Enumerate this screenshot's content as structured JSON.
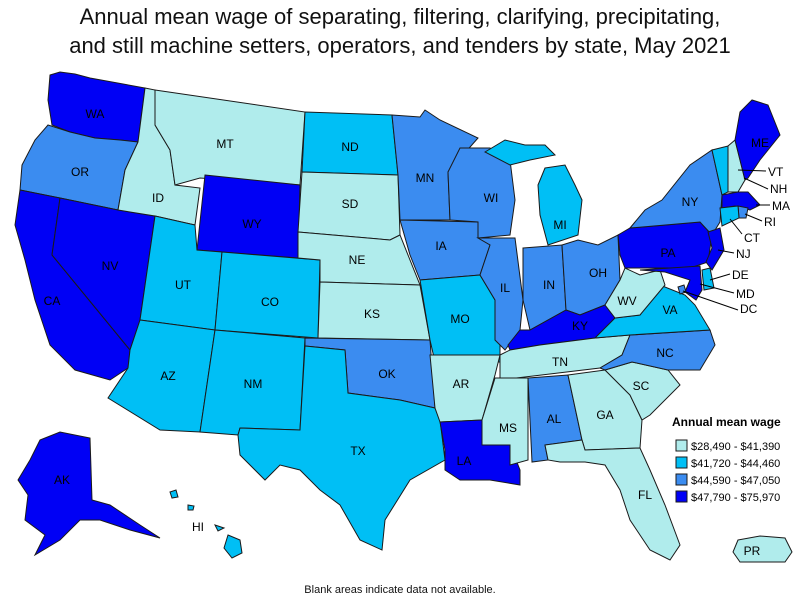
{
  "title_line1": "Annual mean wage of separating, filtering, clarifying, precipitating,",
  "title_line2": "and still machine setters, operators, and tenders by state, May 2021",
  "footnote": "Blank areas indicate data not available.",
  "legend": {
    "title": "Annual mean wage",
    "bins": [
      {
        "label": "$28,490 - $41,390",
        "color": "#b0ecec"
      },
      {
        "label": "$41,720 - $44,460",
        "color": "#00bff5"
      },
      {
        "label": "$44,590 - $47,050",
        "color": "#3b8cf0"
      },
      {
        "label": "$47,790 - $75,970",
        "color": "#0000f5"
      }
    ]
  },
  "states": [
    {
      "abbr": "WA",
      "bin": 3
    },
    {
      "abbr": "OR",
      "bin": 2
    },
    {
      "abbr": "CA",
      "bin": 3
    },
    {
      "abbr": "NV",
      "bin": 3
    },
    {
      "abbr": "ID",
      "bin": 0
    },
    {
      "abbr": "MT",
      "bin": 0
    },
    {
      "abbr": "WY",
      "bin": 3
    },
    {
      "abbr": "UT",
      "bin": 1
    },
    {
      "abbr": "CO",
      "bin": 1
    },
    {
      "abbr": "AZ",
      "bin": 1
    },
    {
      "abbr": "NM",
      "bin": 1
    },
    {
      "abbr": "ND",
      "bin": 1
    },
    {
      "abbr": "SD",
      "bin": 0
    },
    {
      "abbr": "NE",
      "bin": 0
    },
    {
      "abbr": "KS",
      "bin": 0
    },
    {
      "abbr": "OK",
      "bin": 2
    },
    {
      "abbr": "TX",
      "bin": 1
    },
    {
      "abbr": "MN",
      "bin": 2
    },
    {
      "abbr": "IA",
      "bin": 2
    },
    {
      "abbr": "MO",
      "bin": 1
    },
    {
      "abbr": "AR",
      "bin": 0
    },
    {
      "abbr": "LA",
      "bin": 3
    },
    {
      "abbr": "WI",
      "bin": 2
    },
    {
      "abbr": "IL",
      "bin": 2
    },
    {
      "abbr": "MI",
      "bin": 1
    },
    {
      "abbr": "IN",
      "bin": 2
    },
    {
      "abbr": "OH",
      "bin": 2
    },
    {
      "abbr": "KY",
      "bin": 3
    },
    {
      "abbr": "TN",
      "bin": 0
    },
    {
      "abbr": "MS",
      "bin": 0
    },
    {
      "abbr": "AL",
      "bin": 2
    },
    {
      "abbr": "GA",
      "bin": 0
    },
    {
      "abbr": "FL",
      "bin": 0
    },
    {
      "abbr": "SC",
      "bin": 0
    },
    {
      "abbr": "NC",
      "bin": 2
    },
    {
      "abbr": "VA",
      "bin": 1
    },
    {
      "abbr": "WV",
      "bin": 0
    },
    {
      "abbr": "PA",
      "bin": 3
    },
    {
      "abbr": "NY",
      "bin": 2
    },
    {
      "abbr": "VT",
      "bin": 1
    },
    {
      "abbr": "NH",
      "bin": 0
    },
    {
      "abbr": "ME",
      "bin": 3
    },
    {
      "abbr": "MA",
      "bin": 3
    },
    {
      "abbr": "RI",
      "bin": 2
    },
    {
      "abbr": "CT",
      "bin": 1
    },
    {
      "abbr": "NJ",
      "bin": 3
    },
    {
      "abbr": "DE",
      "bin": 1
    },
    {
      "abbr": "MD",
      "bin": 3
    },
    {
      "abbr": "DC",
      "bin": 2
    },
    {
      "abbr": "AK",
      "bin": 3
    },
    {
      "abbr": "HI",
      "bin": 1
    },
    {
      "abbr": "PR",
      "bin": 0
    }
  ]
}
